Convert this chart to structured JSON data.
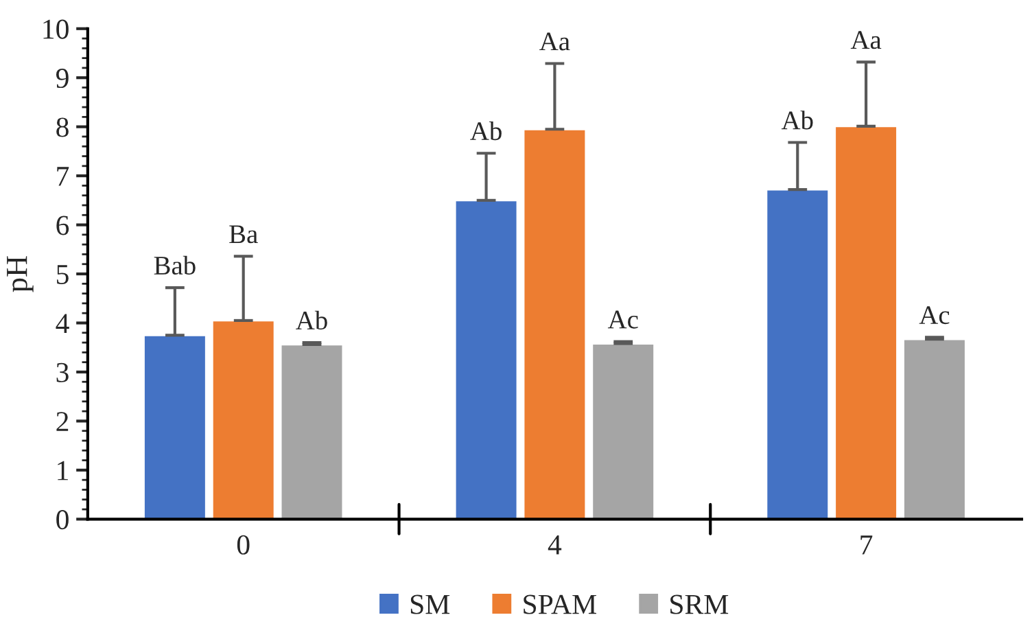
{
  "chart_data": {
    "type": "bar",
    "ylabel": "pH",
    "categories": [
      "0",
      "4",
      "7"
    ],
    "series": [
      {
        "name": "SM",
        "color": "#4472c4",
        "values": [
          3.75,
          6.5,
          6.72
        ],
        "errors": [
          [
            3.75,
            4.72
          ],
          [
            6.5,
            7.46
          ],
          [
            6.72,
            7.68
          ]
        ],
        "value_labels": [
          "Bab",
          "Ab",
          "Ab"
        ]
      },
      {
        "name": "SPAM",
        "color": "#ed7d31",
        "values": [
          4.05,
          7.95,
          8.01
        ],
        "errors": [
          [
            4.05,
            5.36
          ],
          [
            7.95,
            9.29
          ],
          [
            8.01,
            9.32
          ]
        ],
        "value_labels": [
          "Ba",
          "Aa",
          "Aa"
        ]
      },
      {
        "name": "SRM",
        "color": "#a5a5a5",
        "values": [
          3.56,
          3.58,
          3.67
        ],
        "errors": [
          [
            3.56,
            3.6
          ],
          [
            3.58,
            3.62
          ],
          [
            3.67,
            3.71
          ]
        ],
        "value_labels": [
          "Ab",
          "Ac",
          "Ac"
        ]
      }
    ],
    "ylim": [
      0,
      10
    ],
    "yticks": [
      0,
      1,
      2,
      3,
      4,
      5,
      6,
      7,
      8,
      9,
      10
    ],
    "grid": false,
    "legend": "bottom"
  }
}
